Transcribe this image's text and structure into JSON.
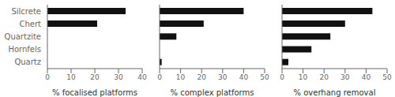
{
  "chart_data": [
    {
      "type": "bar",
      "orientation": "horizontal",
      "categories": [
        "Silcrete",
        "Chert",
        "Quartzite",
        "Hornfels",
        "Quartz"
      ],
      "values": [
        33,
        21,
        0,
        0,
        0
      ],
      "color": "#111111",
      "xlabel": "% focalised platforms",
      "xlim": [
        0,
        40
      ],
      "xticks": [
        0,
        10,
        20,
        30,
        40
      ]
    },
    {
      "type": "bar",
      "orientation": "horizontal",
      "categories": [
        "Silcrete",
        "Chert",
        "Quartzite",
        "Hornfels",
        "Quartz"
      ],
      "values": [
        40,
        21,
        8,
        0,
        1
      ],
      "color": "#111111",
      "xlabel": "% complex platforms",
      "xlim": [
        0,
        50
      ],
      "xticks": [
        0,
        10,
        20,
        30,
        40,
        50
      ],
      "tick_labels": "x"
    },
    {
      "type": "bar",
      "orientation": "horizontal",
      "categories": [
        "Silcrete",
        "Chert",
        "Quartzite",
        "Hornfels",
        "Quartz"
      ],
      "values": [
        43,
        30,
        23,
        14,
        3
      ],
      "color": "#111111",
      "xlabel": "% overhang removal",
      "xlim": [
        0,
        50
      ],
      "xticks": [
        0,
        10,
        20,
        30,
        40,
        50
      ],
      "tick_labels": "x"
    }
  ]
}
